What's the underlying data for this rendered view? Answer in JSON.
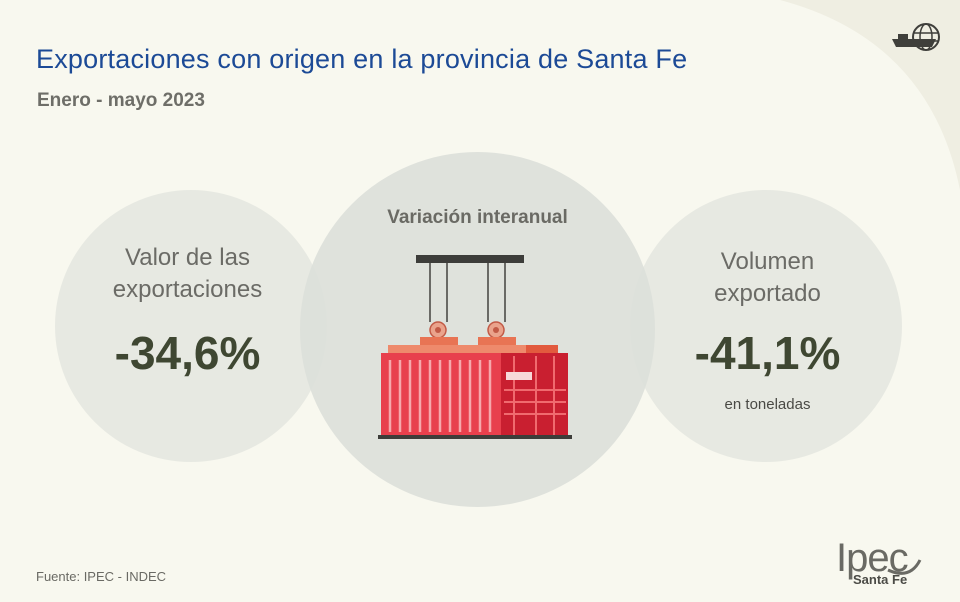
{
  "header": {
    "title": "Exportaciones con origen en la provincia de Santa Fe",
    "subtitle": "Enero - mayo 2023"
  },
  "icons": {
    "top_right": "globe-ship-icon",
    "center": "shipping-container-crane-icon"
  },
  "cards": {
    "left": {
      "label_line1": "Valor de las",
      "label_line2": "exportaciones",
      "value": "-34,6%"
    },
    "center": {
      "title": "Variación interanual"
    },
    "right": {
      "label_line1": "Volumen",
      "label_line2": "exportado",
      "value": "-41,1%",
      "note": "en toneladas"
    }
  },
  "footer": {
    "source": "Fuente: IPEC - INDEC",
    "logo_text": "Ipec",
    "logo_subtitle": "Santa Fe"
  },
  "colors": {
    "background": "#f8f8ef",
    "title": "#1c4a96",
    "value": "#3f4732",
    "container_red": "#e8404d",
    "container_dark": "#c91f30",
    "container_orange": "#e87454"
  }
}
